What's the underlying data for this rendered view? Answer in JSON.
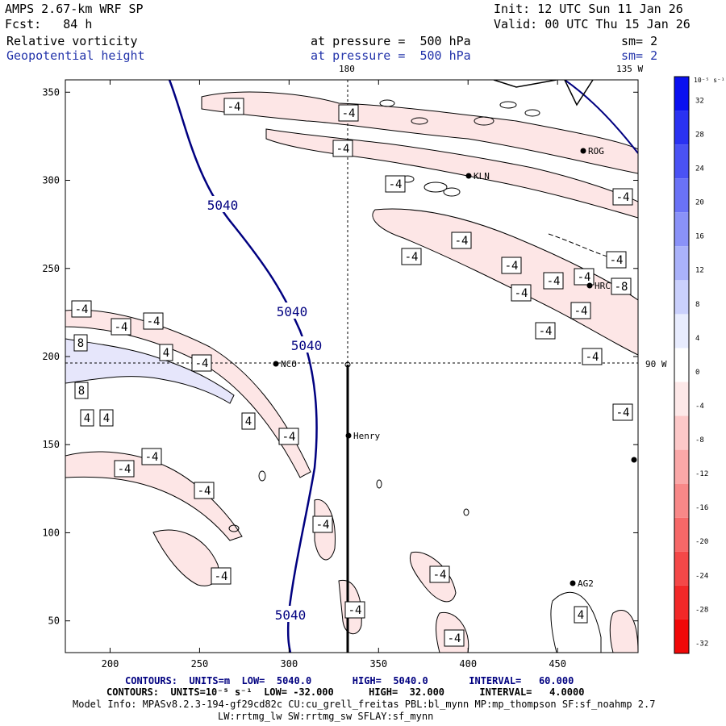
{
  "header": {
    "model": "AMPS 2.67-km WRF SP",
    "forecast": "Fcst:   84 h",
    "init": "Init: 12 UTC Sun 11 Jan 26",
    "valid": "Valid: 00 UTC Thu 15 Jan 26",
    "field1": {
      "name": "Relative vorticity",
      "level": "at pressure =  500 hPa",
      "smooth": "sm= 2"
    },
    "field2": {
      "name": "Geopotential height",
      "level": "at pressure =  500 hPa",
      "smooth": "sm= 2"
    }
  },
  "labels": {
    "top_180": "180",
    "top_135w": "135 W",
    "side_90w": "90 W"
  },
  "axes": {
    "x_ticks": [
      "200",
      "250",
      "300",
      "350",
      "400",
      "450"
    ],
    "y_ticks": [
      "350",
      "300",
      "250",
      "200",
      "150",
      "100",
      "50"
    ]
  },
  "colorbar": {
    "unit": "10⁻⁵ s⁻¹",
    "ticks": [
      "32",
      "28",
      "24",
      "20",
      "16",
      "12",
      "8",
      "4",
      "0",
      "-4",
      "-8",
      "-12",
      "-16",
      "-20",
      "-24",
      "-28",
      "-32"
    ],
    "colors": [
      "#0a10f0",
      "#2a32f2",
      "#4a52f4",
      "#6a72f6",
      "#8a92f8",
      "#aab2fa",
      "#cad0fc",
      "#e8ecfe",
      "#ffffff",
      "#fde8e8",
      "#fcc8c8",
      "#faa8a8",
      "#f88888",
      "#f66868",
      "#f44848",
      "#f22828",
      "#f00808"
    ]
  },
  "contour_labels": [
    "-4",
    "-4",
    "-4",
    "-4",
    "-4",
    "-4",
    "-4",
    "-4",
    "-4",
    "-4",
    "-4",
    "-4",
    "-8",
    "-4",
    "-4",
    "-4",
    "-4",
    "-4",
    "8",
    "-4",
    "4",
    "-4",
    "8",
    "4",
    "4",
    "4",
    "-4",
    "-4",
    "-4",
    "-4",
    "-4",
    "-4",
    "-4",
    "-4",
    "-4",
    "4",
    "-4"
  ],
  "height_labels": [
    "5040",
    "5040",
    "5040",
    "5040"
  ],
  "stations": [
    "ROG",
    "KLN",
    "HRC",
    "NCO",
    "Henry",
    "AG2"
  ],
  "footer": {
    "contours_height": "CONTOURS:  UNITS=m  LOW=  5040.0       HIGH=  5040.0       INTERVAL=   60.000",
    "contours_vort": "CONTOURS:  UNITS=10⁻⁵ s⁻¹  LOW= -32.000      HIGH=  32.000      INTERVAL=   4.0000",
    "model_info": "Model Info: MPASv8.2.3-194-gf29cd82c CU:cu_grell_freitas PBL:bl_mynn MP:mp_thompson SF:sf_noahmp 2.7",
    "model_info2": "LW:rrtmg_lw SW:rrtmg_sw SFLAY:sf_mynn"
  }
}
